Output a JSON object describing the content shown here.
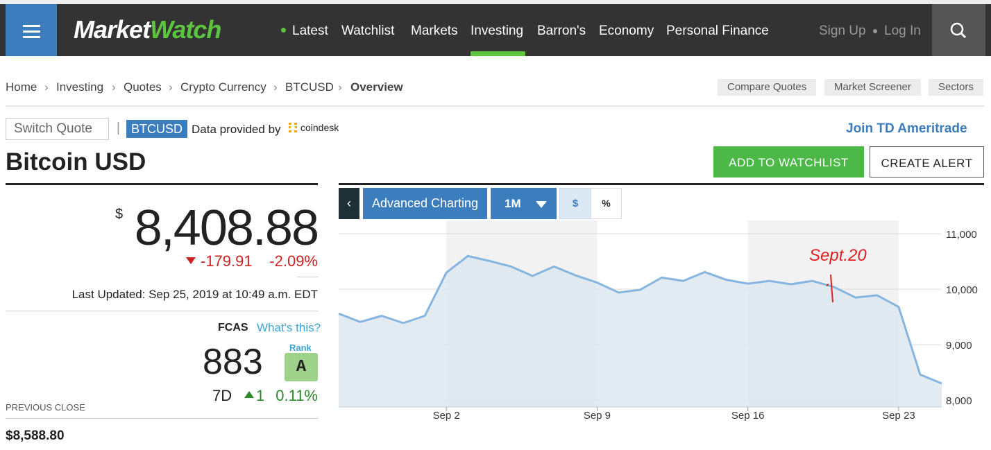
{
  "nav": {
    "brand": [
      "Market",
      "Watch"
    ],
    "links": [
      "Latest",
      "Watchlist",
      "Markets",
      "Investing",
      "Barron's",
      "Economy",
      "Personal Finance"
    ],
    "sign_up": "Sign Up",
    "log_in": "Log In"
  },
  "breadcrumb": [
    "Home",
    "Investing",
    "Quotes",
    "Crypto Currency",
    "BTCUSD",
    "Overview"
  ],
  "tools": [
    "Compare Quotes",
    "Market Screener",
    "Sectors"
  ],
  "quote_bar": {
    "switch": "Switch Quote",
    "ticker": "BTCUSD",
    "provided": "Data provided by",
    "provider": "coindesk",
    "join": "Join TD Ameritrade"
  },
  "title": "Bitcoin USD",
  "actions": [
    "ADD TO WATCHLIST",
    "CREATE ALERT"
  ],
  "quote": {
    "currency": "$",
    "price": "8,408.88",
    "change": "-179.91",
    "change_pct": "-2.09%",
    "last_updated": "Last Updated: Sep 25, 2019 at 10:49 a.m. EDT"
  },
  "fcas": {
    "label": "FCAS",
    "help": "What's this?",
    "score": "883",
    "rank_label": "Rank",
    "rank": "A",
    "period": "7D",
    "change": "1",
    "change_pct": "0.11%"
  },
  "previous_close": {
    "label": "PREVIOUS CLOSE",
    "value": "$8,588.80"
  },
  "toolbar": [
    "Advanced Charting",
    "1M",
    "$",
    "%"
  ],
  "chart_data": {
    "type": "line",
    "color": "#86b5e0",
    "fill": "#dde7f0",
    "categories": [
      null,
      null,
      null,
      null,
      null,
      "Sep 2",
      null,
      null,
      null,
      null,
      null,
      null,
      "Sep 9",
      null,
      null,
      null,
      null,
      null,
      null,
      "Sep 16",
      null,
      null,
      null,
      null,
      null,
      null,
      "Sep 23",
      null,
      null
    ],
    "values": [
      9560,
      9410,
      9520,
      9390,
      9520,
      10300,
      10600,
      10510,
      10410,
      10240,
      10410,
      10250,
      10120,
      9940,
      9990,
      10210,
      10150,
      10310,
      10170,
      10100,
      10150,
      10090,
      10150,
      10040,
      9850,
      9890,
      9680,
      8460,
      8300
    ],
    "ylim": [
      7875,
      11240
    ],
    "yticks": [
      {
        "value": 8000,
        "label": "8,000"
      },
      {
        "value": 9000,
        "label": "9,000"
      },
      {
        "value": 10000,
        "label": "10,000"
      },
      {
        "value": 11000,
        "label": "11,000"
      }
    ],
    "grid": true,
    "annotation": "Sept.20"
  }
}
